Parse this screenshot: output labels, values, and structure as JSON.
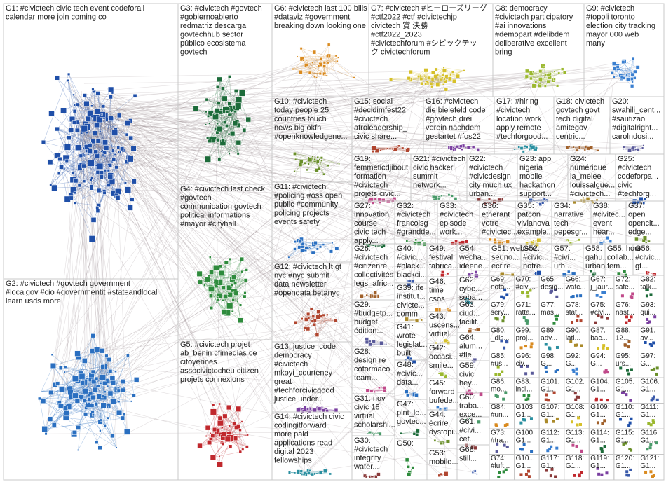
{
  "groups": [
    {
      "lines": [
        "G1: #civictech civic tech event codeforall",
        "calendar more join coming co"
      ]
    },
    {
      "lines": [
        "G2: #civictech #govtech government",
        "#localgov #cio #governmentit #stateandlocal",
        "learn usds more"
      ]
    },
    {
      "lines": [
        "G3: #civictech #govtech",
        "#gobiernoabierto",
        "redmatriz descarga",
        "govtechhub sector",
        "público ecosistema",
        "govtech"
      ]
    },
    {
      "lines": [
        "G4: #civictech last check",
        "#govtech",
        "communication govtech",
        "political informations",
        "#mayor #cityhall"
      ]
    },
    {
      "lines": [
        "G5: #civictech projet",
        "ab_benin cfimedias ce",
        "citoyennes",
        "associvictecheu citizen",
        "projets connexions"
      ]
    },
    {
      "lines": [
        "G6: #civictech last 100 bills",
        "#dataviz #government",
        "breaking down looking one"
      ]
    },
    {
      "lines": [
        "G7: #civictech #ヒーローズリーグ",
        "#ctf2022 #ctf #civictechjp",
        "civictech 賞 決勝",
        "#ctf2022_2023",
        "#civictechforum #シビックテッ",
        "ク civictechforum"
      ]
    },
    {
      "lines": [
        "G8: democracy",
        "#civictech participatory",
        "#ai innovations",
        "#demopart #delibdem",
        "deliberative excellent",
        "bring"
      ]
    },
    {
      "lines": [
        "G9: #civictech",
        "#topoli toronto",
        "election city tracking",
        "mayor 000 web",
        "many"
      ]
    },
    {
      "lines": [
        "G10: #civictech",
        "today people 25",
        "countries touch",
        "news big okfn",
        "#openknowledgene..."
      ]
    },
    {
      "lines": [
        "G15: social",
        "#decidimfest22",
        "#civictech",
        "afroleadership_",
        "civic share..."
      ]
    },
    {
      "lines": [
        "G16: #civictech",
        "die bielefeld code",
        "#govtech drei",
        "verein nachdem",
        "gestartet #fos22"
      ]
    },
    {
      "lines": [
        "G17: #hiring",
        "#civictech",
        "location work",
        "apply remote",
        "#techforgood..."
      ]
    },
    {
      "lines": [
        "G18: civictech",
        "govtech govt",
        "tech digital",
        "amitegov",
        "centric..."
      ]
    },
    {
      "lines": [
        "G20:",
        "swahili_cent...",
        "#sautizao",
        "#digitalright...",
        "carolndosi..."
      ]
    },
    {
      "lines": [
        "G19:",
        "femmeticdjibout",
        "formation",
        "#civictech",
        "projets civic..."
      ]
    },
    {
      "lines": [
        "G21: #civictech",
        "civic hacker",
        "summit",
        "network..."
      ]
    },
    {
      "lines": [
        "G22:",
        "#civictech",
        "#civicdesign",
        "city much ux",
        "urban..."
      ]
    },
    {
      "lines": [
        "G23: app",
        "nigeria",
        "mobile",
        "hackathon",
        "support..."
      ]
    },
    {
      "lines": [
        "G24:",
        "numérique",
        "la_melee",
        "louissalgue...",
        "#civictech..."
      ]
    },
    {
      "lines": [
        "G25:",
        "#civictech",
        "codeforpa...",
        "civic",
        "#techforg..."
      ]
    },
    {
      "lines": [
        "G11: #civictech",
        "#policing #oss open",
        "public #community",
        "policing projects",
        "events safety"
      ]
    },
    {
      "lines": [
        "G27:",
        "innovation",
        "course",
        "civic tech",
        "apply..."
      ]
    },
    {
      "lines": [
        "G32:",
        "#civictech",
        "francoisg",
        "#grandde..."
      ]
    },
    {
      "lines": [
        "G33:",
        "#civictech",
        "episode",
        "work..."
      ]
    },
    {
      "lines": [
        "G36:",
        "etnerant",
        "votre",
        "#civictec..."
      ]
    },
    {
      "lines": [
        "G35:",
        "patcon",
        "vivlanova",
        "example..."
      ]
    },
    {
      "lines": [
        "G34:",
        "narrative",
        "tech",
        "pepesgr..."
      ]
    },
    {
      "lines": [
        "G38:",
        "#civitec...",
        "event",
        "hear..."
      ]
    },
    {
      "lines": [
        "G37:",
        "open",
        "opencit...",
        "edge..."
      ]
    },
    {
      "lines": [
        "G12: #civictech lt gt",
        "nyc #nyc submit",
        "data newsletter",
        "#opendata betanyc"
      ]
    },
    {
      "lines": [
        "G13: justice_code",
        "democracy",
        "#civictech",
        "mkoyi_courteney",
        "great",
        "#techforcivicgood",
        "justice under..."
      ]
    },
    {
      "lines": [
        "G14: #civictech civic",
        "codingitforward",
        "more paid",
        "applications read",
        "digital 2023",
        "fellowships"
      ]
    },
    {
      "lines": [
        "G26:",
        "#civictech",
        "#citizenre...",
        "collectivités",
        "legs_afric..."
      ]
    },
    {
      "lines": [
        "G29:",
        "#budgetp...",
        "budget",
        "édition..."
      ]
    },
    {
      "lines": [
        "G28:",
        "design re",
        "coformaco",
        "team..."
      ]
    },
    {
      "lines": [
        "G31: nov",
        "civic 18",
        "virtual",
        "scholarshi..."
      ]
    },
    {
      "lines": [
        "G30:",
        "#civictech",
        "integrity",
        "water..."
      ]
    },
    {
      "lines": [
        "G40:",
        "#civic...",
        "#black...",
        "blackci..."
      ]
    },
    {
      "lines": [
        "G39: ife",
        "institut...",
        "civicte...",
        "comm..."
      ]
    },
    {
      "lines": [
        "G41:",
        "wrote",
        "legislat...",
        "built"
      ]
    },
    {
      "lines": [
        "G48:",
        "#civic...",
        "data..."
      ]
    },
    {
      "lines": [
        "G47:",
        "plnt_le...",
        "govtec..."
      ]
    },
    {
      "lines": [
        "G50:"
      ]
    },
    {
      "lines": [
        "G49:",
        "festival",
        "fabrica..."
      ]
    },
    {
      "lines": [
        "G46:",
        "time",
        "csos"
      ]
    },
    {
      "lines": [
        "G43:",
        "uscens...",
        "virtual..."
      ]
    },
    {
      "lines": [
        "G42:",
        "occasi...",
        "smile..."
      ]
    },
    {
      "lines": [
        "G45:",
        "forward",
        "bufede..."
      ]
    },
    {
      "lines": [
        "G44:",
        "écrire",
        "dystopi..."
      ]
    },
    {
      "lines": [
        "G53:",
        "mobile..."
      ]
    },
    {
      "lines": [
        "G54:",
        "wecha...",
        "ideene..."
      ]
    },
    {
      "lines": [
        "G62:",
        "cybe...",
        "seba..."
      ]
    },
    {
      "lines": [
        "G63:",
        "ciud...",
        "facilit..."
      ]
    },
    {
      "lines": [
        "G64:",
        "alum...",
        "#fle..."
      ]
    },
    {
      "lines": [
        "G59:",
        "civic",
        "hey..."
      ]
    },
    {
      "lines": [
        "G60:",
        "traba...",
        "exce..."
      ]
    },
    {
      "lines": [
        "G61:",
        "#civi...",
        "cet..."
      ]
    },
    {
      "lines": [
        "G68:",
        "still..."
      ]
    },
    {
      "lines": [
        "G51: website",
        "seuno...",
        "ecrire..."
      ]
    },
    {
      "lines": [
        "G52:",
        "#civic...",
        "notre..."
      ]
    },
    {
      "lines": [
        "G57:",
        "#civi...",
        "urb..."
      ]
    },
    {
      "lines": [
        "G58:",
        "gahu...",
        "urban..."
      ]
    },
    {
      "lines": [
        "G55: hour",
        "collab...",
        "fem..."
      ]
    },
    {
      "lines": [
        "G56:",
        "#civic...",
        "gt..."
      ]
    }
  ],
  "small_groups": [
    {
      "lines": [
        "G69:",
        "nota..."
      ]
    },
    {
      "lines": [
        "G70:",
        "#civi..."
      ]
    },
    {
      "lines": [
        "G65:",
        "desig..."
      ]
    },
    {
      "lines": [
        "G66:",
        "watc..."
      ]
    },
    {
      "lines": [
        "G67:",
        "j_jaur..."
      ]
    },
    {
      "lines": [
        "G72:",
        "safe..."
      ]
    },
    {
      "lines": [
        "G82:",
        "talk..."
      ]
    },
    {
      "lines": [
        "G79:",
        "sery..."
      ]
    },
    {
      "lines": [
        "G71:",
        "ratta..."
      ]
    },
    {
      "lines": [
        "G77:",
        "mas..."
      ]
    },
    {
      "lines": [
        "G78:",
        "stat..."
      ]
    },
    {
      "lines": [
        "G75:",
        "#civi..."
      ]
    },
    {
      "lines": [
        "G76:",
        "nast..."
      ]
    },
    {
      "lines": [
        "G93:",
        "qui..."
      ]
    },
    {
      "lines": [
        "G80:",
        "_dis..."
      ]
    },
    {
      "lines": [
        "G99:",
        "proj..."
      ]
    },
    {
      "lines": [
        "G89:",
        "adv..."
      ]
    },
    {
      "lines": [
        "G90:",
        "lati..."
      ]
    },
    {
      "lines": [
        "G87:",
        "bac..."
      ]
    },
    {
      "lines": [
        "G88:",
        "12..."
      ]
    },
    {
      "lines": [
        "G91:",
        "av..."
      ]
    },
    {
      "lines": [
        "G85:",
        "#us..."
      ]
    },
    {
      "lines": [
        "G96:",
        "civ..."
      ]
    },
    {
      "lines": [
        "G98:",
        "G..."
      ]
    },
    {
      "lines": [
        "G92:",
        "G..."
      ]
    },
    {
      "lines": [
        "G94:",
        "G..."
      ]
    },
    {
      "lines": [
        "G95:",
        "urs..."
      ]
    },
    {
      "lines": [
        "G97:",
        "G..."
      ]
    },
    {
      "lines": [
        "G86:",
        "mo..."
      ]
    },
    {
      "lines": [
        "G83:",
        "indi..."
      ]
    },
    {
      "lines": [
        "G101:",
        "G1..."
      ]
    },
    {
      "lines": [
        "G102:",
        "G1..."
      ]
    },
    {
      "lines": [
        "G104:",
        "G1..."
      ]
    },
    {
      "lines": [
        "G105:",
        "G1..."
      ]
    },
    {
      "lines": [
        "G106:",
        "G1..."
      ]
    },
    {
      "lines": [
        "G84:",
        "#un..."
      ]
    },
    {
      "lines": [
        "G103",
        "G1..."
      ]
    },
    {
      "lines": [
        "G107:",
        "G1..."
      ]
    },
    {
      "lines": [
        "G108:",
        "G1..."
      ]
    },
    {
      "lines": [
        "G109:",
        "G1..."
      ]
    },
    {
      "lines": [
        "G110:",
        "G1..."
      ]
    },
    {
      "lines": [
        "G111:",
        "G1..."
      ]
    },
    {
      "lines": [
        "G73:",
        "#tra..."
      ]
    },
    {
      "lines": [
        "G100",
        "G1..."
      ]
    },
    {
      "lines": [
        "G112:",
        "G1..."
      ]
    },
    {
      "lines": [
        "G113:",
        "G1..."
      ]
    },
    {
      "lines": [
        "G114:",
        "G1..."
      ]
    },
    {
      "lines": [
        "G115:",
        "G1..."
      ]
    },
    {
      "lines": [
        "G116:",
        "G1..."
      ]
    },
    {
      "lines": [
        "G74:",
        "#luft..."
      ]
    },
    {
      "lines": [
        "G10...",
        "G1..."
      ]
    },
    {
      "lines": [
        "G117:",
        "G1..."
      ]
    },
    {
      "lines": [
        "G118:",
        "G1..."
      ]
    },
    {
      "lines": [
        "G119:",
        "G1..."
      ]
    },
    {
      "lines": [
        "G120:",
        "G1..."
      ]
    },
    {
      "lines": [
        "G121:",
        "G1..."
      ]
    }
  ]
}
